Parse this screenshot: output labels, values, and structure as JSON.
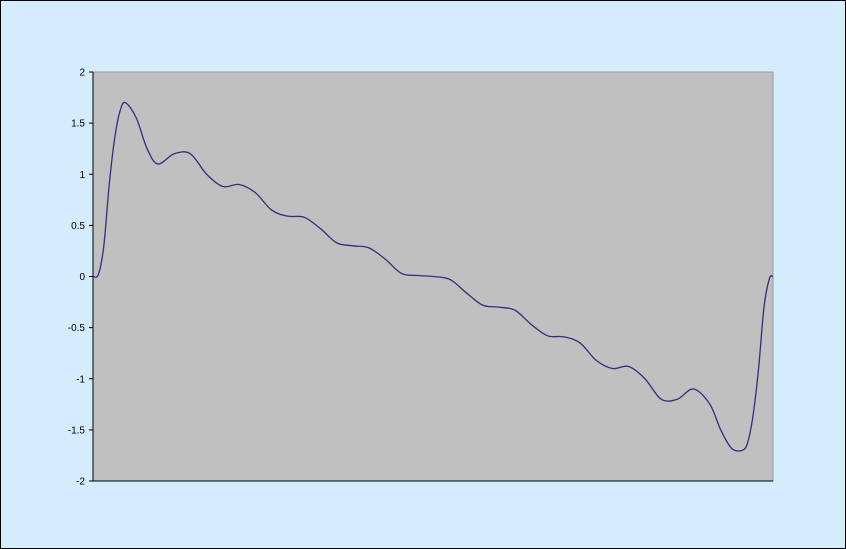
{
  "chart_data": {
    "type": "line",
    "title": "",
    "xlabel": "",
    "ylabel": "",
    "ylim": [
      -2,
      2
    ],
    "y_ticks": [
      "2",
      "1.5",
      "1",
      "0.5",
      "0",
      "-0.5",
      "-1",
      "-1.5",
      "-2"
    ],
    "y_tick_values": [
      2,
      1.5,
      1,
      0.5,
      0,
      -0.5,
      -1,
      -1.5,
      -2
    ],
    "x_range": [
      0,
      6.2832
    ],
    "grid": false,
    "legend": "none",
    "series": [
      {
        "color": "#3a2a78",
        "x": [
          0,
          0.05,
          0.1,
          0.15,
          0.2,
          0.25,
          0.3,
          0.4,
          0.5,
          0.6,
          0.75,
          0.9,
          1.05,
          1.2,
          1.35,
          1.5,
          1.65,
          1.8,
          1.95,
          2.1,
          2.25,
          2.4,
          2.55,
          2.7,
          2.85,
          3.0,
          3.1416,
          3.3,
          3.45,
          3.6,
          3.75,
          3.9,
          4.05,
          4.2,
          4.35,
          4.5,
          4.65,
          4.8,
          4.95,
          5.1,
          5.25,
          5.4,
          5.55,
          5.7,
          5.8,
          5.9,
          6.0,
          6.05,
          6.1,
          6.15,
          6.2,
          6.25,
          6.2832
        ],
        "y": [
          0.0,
          0.02,
          0.3,
          0.9,
          1.35,
          1.62,
          1.7,
          1.55,
          1.25,
          1.1,
          1.2,
          1.2,
          1.0,
          0.88,
          0.9,
          0.82,
          0.65,
          0.59,
          0.58,
          0.47,
          0.33,
          0.3,
          0.28,
          0.17,
          0.03,
          0.01,
          0.0,
          -0.03,
          -0.16,
          -0.28,
          -0.3,
          -0.33,
          -0.47,
          -0.58,
          -0.59,
          -0.65,
          -0.82,
          -0.9,
          -0.88,
          -1.0,
          -1.2,
          -1.2,
          -1.1,
          -1.25,
          -1.5,
          -1.68,
          -1.7,
          -1.62,
          -1.35,
          -0.9,
          -0.3,
          -0.02,
          0.0
        ]
      }
    ]
  }
}
